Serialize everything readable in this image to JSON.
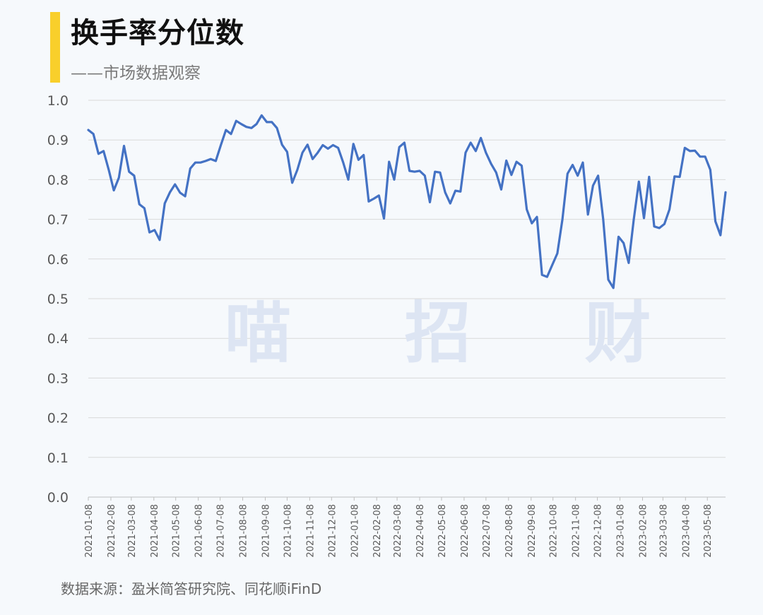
{
  "header": {
    "title": "换手率分位数",
    "subtitle": "——市场数据观察"
  },
  "watermark": "喵 招 财",
  "footer": {
    "source": "数据来源：盈米简答研究院、同花顺iFinD"
  },
  "colors": {
    "accent": "#f9cf2b",
    "line": "#4472c4",
    "grid": "#d9d9d9",
    "background": "#f6f9fc"
  },
  "chart_data": {
    "type": "line",
    "title": "换手率分位数",
    "xlabel": "",
    "ylabel": "",
    "ylim": [
      0,
      1.0
    ],
    "yticks": [
      "0.0",
      "0.1",
      "0.2",
      "0.3",
      "0.4",
      "0.5",
      "0.6",
      "0.7",
      "0.8",
      "0.9",
      "1.0"
    ],
    "xticks": [
      "2021-01-08",
      "2021-02-08",
      "2021-03-08",
      "2021-04-08",
      "2021-05-08",
      "2021-06-08",
      "2021-07-08",
      "2021-08-08",
      "2021-09-08",
      "2021-10-08",
      "2021-11-08",
      "2021-12-08",
      "2022-01-08",
      "2022-02-08",
      "2022-03-08",
      "2022-04-08",
      "2022-05-08",
      "2022-06-08",
      "2022-07-08",
      "2022-08-08",
      "2022-09-08",
      "2022-10-08",
      "2022-11-08",
      "2022-12-08",
      "2023-01-08",
      "2023-02-08",
      "2023-03-08",
      "2023-04-08",
      "2023-05-08"
    ],
    "grid": true,
    "legend": "none",
    "series": [
      {
        "values": [
          [
            "2021-01-08",
            0.925
          ],
          [
            "2021-01-15",
            0.915
          ],
          [
            "2021-01-22",
            0.865
          ],
          [
            "2021-01-29",
            0.872
          ],
          [
            "2021-02-05",
            0.825
          ],
          [
            "2021-02-12",
            0.773
          ],
          [
            "2021-02-19",
            0.805
          ],
          [
            "2021-02-26",
            0.885
          ],
          [
            "2021-03-05",
            0.82
          ],
          [
            "2021-03-12",
            0.81
          ],
          [
            "2021-03-19",
            0.738
          ],
          [
            "2021-03-26",
            0.728
          ],
          [
            "2021-04-02",
            0.667
          ],
          [
            "2021-04-09",
            0.673
          ],
          [
            "2021-04-16",
            0.648
          ],
          [
            "2021-04-23",
            0.74
          ],
          [
            "2021-04-30",
            0.768
          ],
          [
            "2021-05-07",
            0.788
          ],
          [
            "2021-05-14",
            0.767
          ],
          [
            "2021-05-21",
            0.758
          ],
          [
            "2021-05-28",
            0.828
          ],
          [
            "2021-06-04",
            0.843
          ],
          [
            "2021-06-11",
            0.843
          ],
          [
            "2021-06-18",
            0.847
          ],
          [
            "2021-06-25",
            0.852
          ],
          [
            "2021-07-02",
            0.847
          ],
          [
            "2021-07-09",
            0.887
          ],
          [
            "2021-07-16",
            0.925
          ],
          [
            "2021-07-23",
            0.915
          ],
          [
            "2021-07-30",
            0.948
          ],
          [
            "2021-08-06",
            0.94
          ],
          [
            "2021-08-13",
            0.933
          ],
          [
            "2021-08-20",
            0.93
          ],
          [
            "2021-08-27",
            0.94
          ],
          [
            "2021-09-03",
            0.962
          ],
          [
            "2021-09-10",
            0.945
          ],
          [
            "2021-09-17",
            0.945
          ],
          [
            "2021-09-24",
            0.93
          ],
          [
            "2021-10-01",
            0.888
          ],
          [
            "2021-10-08",
            0.87
          ],
          [
            "2021-10-15",
            0.792
          ],
          [
            "2021-10-22",
            0.825
          ],
          [
            "2021-10-29",
            0.868
          ],
          [
            "2021-11-05",
            0.888
          ],
          [
            "2021-11-12",
            0.852
          ],
          [
            "2021-11-19",
            0.868
          ],
          [
            "2021-11-26",
            0.887
          ],
          [
            "2021-12-03",
            0.878
          ],
          [
            "2021-12-10",
            0.887
          ],
          [
            "2021-12-17",
            0.88
          ],
          [
            "2021-12-24",
            0.843
          ],
          [
            "2021-12-31",
            0.8
          ],
          [
            "2022-01-07",
            0.89
          ],
          [
            "2022-01-14",
            0.85
          ],
          [
            "2022-01-21",
            0.862
          ],
          [
            "2022-01-28",
            0.745
          ],
          [
            "2022-02-04",
            0.752
          ],
          [
            "2022-02-11",
            0.76
          ],
          [
            "2022-02-18",
            0.702
          ],
          [
            "2022-02-25",
            0.845
          ],
          [
            "2022-03-04",
            0.8
          ],
          [
            "2022-03-11",
            0.882
          ],
          [
            "2022-03-18",
            0.893
          ],
          [
            "2022-03-25",
            0.822
          ],
          [
            "2022-04-01",
            0.82
          ],
          [
            "2022-04-08",
            0.822
          ],
          [
            "2022-04-15",
            0.81
          ],
          [
            "2022-04-22",
            0.743
          ],
          [
            "2022-04-29",
            0.82
          ],
          [
            "2022-05-06",
            0.818
          ],
          [
            "2022-05-13",
            0.768
          ],
          [
            "2022-05-20",
            0.74
          ],
          [
            "2022-05-27",
            0.772
          ],
          [
            "2022-06-03",
            0.77
          ],
          [
            "2022-06-10",
            0.868
          ],
          [
            "2022-06-17",
            0.893
          ],
          [
            "2022-06-24",
            0.872
          ],
          [
            "2022-07-01",
            0.905
          ],
          [
            "2022-07-08",
            0.868
          ],
          [
            "2022-07-15",
            0.84
          ],
          [
            "2022-07-22",
            0.818
          ],
          [
            "2022-07-29",
            0.775
          ],
          [
            "2022-08-05",
            0.848
          ],
          [
            "2022-08-12",
            0.812
          ],
          [
            "2022-08-19",
            0.845
          ],
          [
            "2022-08-26",
            0.835
          ],
          [
            "2022-09-02",
            0.725
          ],
          [
            "2022-09-09",
            0.69
          ],
          [
            "2022-09-16",
            0.706
          ],
          [
            "2022-09-23",
            0.56
          ],
          [
            "2022-09-30",
            0.555
          ],
          [
            "2022-10-07",
            0.585
          ],
          [
            "2022-10-14",
            0.614
          ],
          [
            "2022-10-21",
            0.7
          ],
          [
            "2022-10-28",
            0.815
          ],
          [
            "2022-11-04",
            0.837
          ],
          [
            "2022-11-11",
            0.81
          ],
          [
            "2022-11-18",
            0.843
          ],
          [
            "2022-11-25",
            0.712
          ],
          [
            "2022-12-02",
            0.785
          ],
          [
            "2022-12-09",
            0.81
          ],
          [
            "2022-12-16",
            0.7
          ],
          [
            "2022-12-23",
            0.548
          ],
          [
            "2022-12-30",
            0.527
          ],
          [
            "2023-01-06",
            0.656
          ],
          [
            "2023-01-13",
            0.64
          ],
          [
            "2023-01-20",
            0.59
          ],
          [
            "2023-01-27",
            0.7
          ],
          [
            "2023-02-03",
            0.795
          ],
          [
            "2023-02-10",
            0.703
          ],
          [
            "2023-02-17",
            0.807
          ],
          [
            "2023-02-24",
            0.682
          ],
          [
            "2023-03-03",
            0.678
          ],
          [
            "2023-03-10",
            0.688
          ],
          [
            "2023-03-17",
            0.725
          ],
          [
            "2023-03-24",
            0.808
          ],
          [
            "2023-03-31",
            0.807
          ],
          [
            "2023-04-07",
            0.88
          ],
          [
            "2023-04-14",
            0.872
          ],
          [
            "2023-04-21",
            0.873
          ],
          [
            "2023-04-28",
            0.858
          ],
          [
            "2023-05-05",
            0.858
          ],
          [
            "2023-05-12",
            0.825
          ],
          [
            "2023-05-19",
            0.695
          ],
          [
            "2023-05-26",
            0.66
          ],
          [
            "2023-06-02",
            0.768
          ]
        ]
      }
    ]
  }
}
